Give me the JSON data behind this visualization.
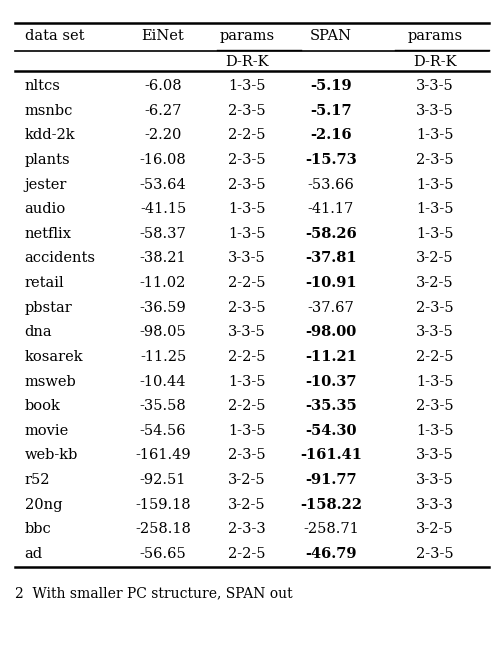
{
  "headers_row1": [
    "data set",
    "EiNet",
    "params",
    "SPAN",
    "params"
  ],
  "headers_row2": [
    "",
    "",
    "D-R-K",
    "",
    "D-R-K"
  ],
  "rows": [
    [
      "nltcs",
      "-6.08",
      "1-3-5",
      "-5.19",
      "3-3-5"
    ],
    [
      "msnbc",
      "-6.27",
      "2-3-5",
      "-5.17",
      "3-3-5"
    ],
    [
      "kdd-2k",
      "-2.20",
      "2-2-5",
      "-2.16",
      "1-3-5"
    ],
    [
      "plants",
      "-16.08",
      "2-3-5",
      "-15.73",
      "2-3-5"
    ],
    [
      "jester",
      "-53.64",
      "2-3-5",
      "-53.66",
      "1-3-5"
    ],
    [
      "audio",
      "-41.15",
      "1-3-5",
      "-41.17",
      "1-3-5"
    ],
    [
      "netflix",
      "-58.37",
      "1-3-5",
      "-58.26",
      "1-3-5"
    ],
    [
      "accidents",
      "-38.21",
      "3-3-5",
      "-37.81",
      "3-2-5"
    ],
    [
      "retail",
      "-11.02",
      "2-2-5",
      "-10.91",
      "3-2-5"
    ],
    [
      "pbstar",
      "-36.59",
      "2-3-5",
      "-37.67",
      "2-3-5"
    ],
    [
      "dna",
      "-98.05",
      "3-3-5",
      "-98.00",
      "3-3-5"
    ],
    [
      "kosarek",
      "-11.25",
      "2-2-5",
      "-11.21",
      "2-2-5"
    ],
    [
      "msweb",
      "-10.44",
      "1-3-5",
      "-10.37",
      "1-3-5"
    ],
    [
      "book",
      "-35.58",
      "2-2-5",
      "-35.35",
      "2-3-5"
    ],
    [
      "movie",
      "-54.56",
      "1-3-5",
      "-54.30",
      "1-3-5"
    ],
    [
      "web-kb",
      "-161.49",
      "2-3-5",
      "-161.41",
      "3-3-5"
    ],
    [
      "r52",
      "-92.51",
      "3-2-5",
      "-91.77",
      "3-3-5"
    ],
    [
      "20ng",
      "-159.18",
      "3-2-5",
      "-158.22",
      "3-3-3"
    ],
    [
      "bbc",
      "-258.18",
      "2-3-3",
      "-258.71",
      "3-2-5"
    ],
    [
      "ad",
      "-56.65",
      "2-2-5",
      "-46.79",
      "2-3-5"
    ]
  ],
  "bold_span": [
    true,
    true,
    true,
    true,
    false,
    false,
    true,
    true,
    true,
    false,
    true,
    true,
    true,
    true,
    true,
    true,
    true,
    true,
    false,
    true
  ],
  "caption": "2  With smaller PC structure, SPAN out",
  "figsize": [
    4.94,
    6.48
  ],
  "dpi": 100,
  "font_size": 10.5
}
